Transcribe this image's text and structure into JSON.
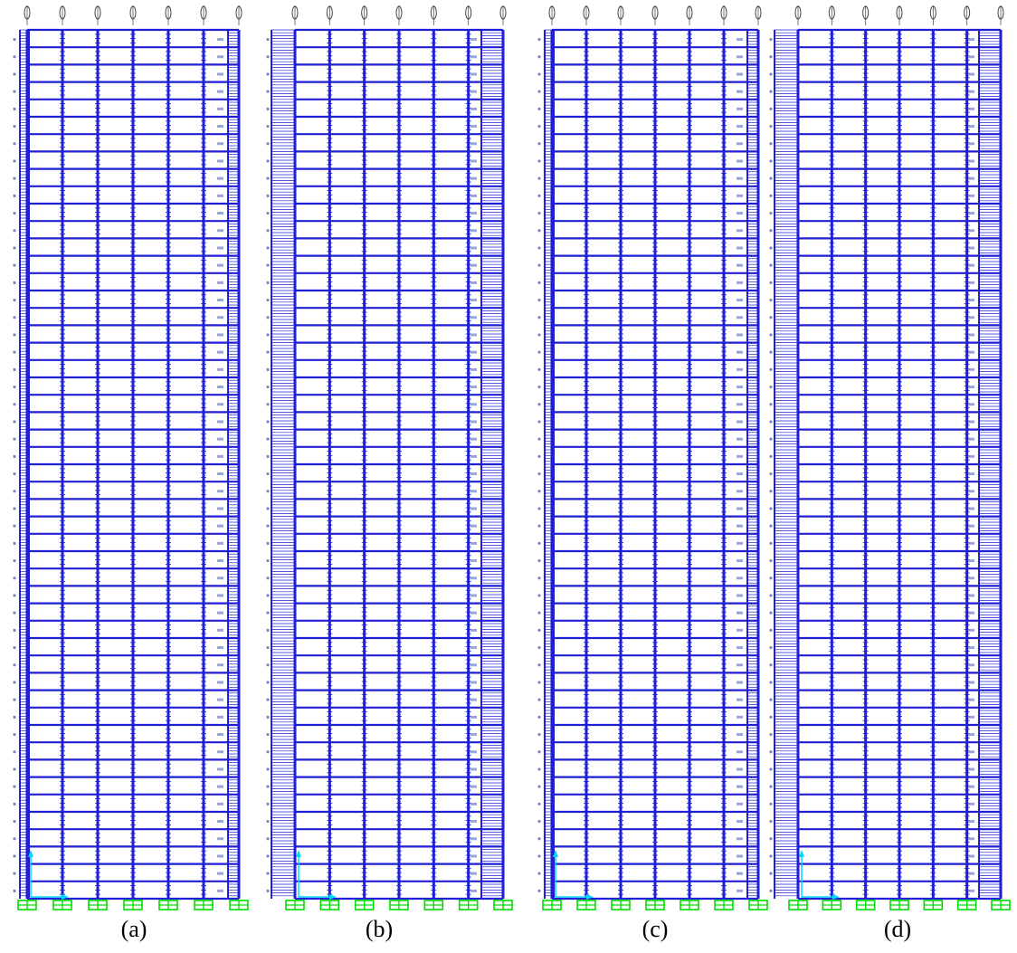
{
  "figure": {
    "colors": {
      "frame": "#1f1fd8",
      "label": "#7a86c8",
      "support": "#00dd00",
      "axes": "#00d8ff"
    },
    "panels": [
      {
        "caption": "(a)",
        "icon": "frame-elevation-diagram"
      },
      {
        "caption": "(b)",
        "icon": "frame-elevation-diagram"
      },
      {
        "caption": "(c)",
        "icon": "frame-elevation-diagram"
      },
      {
        "caption": "(d)",
        "icon": "frame-elevation-diagram"
      }
    ]
  }
}
